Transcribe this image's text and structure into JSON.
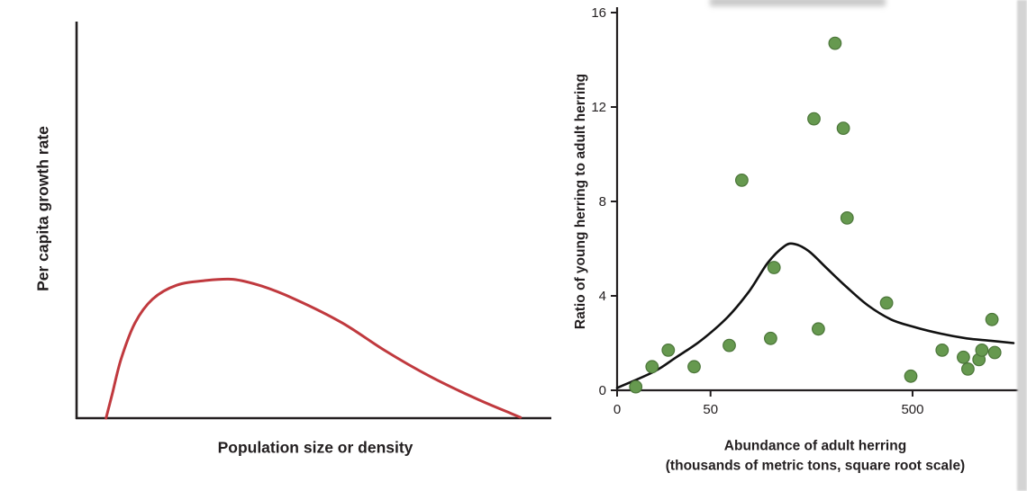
{
  "figure": {
    "background": "#ffffff"
  },
  "chart_data": [
    {
      "type": "line",
      "panel": "left",
      "title": "",
      "xlabel": "Population size or density",
      "ylabel": "Per capita growth rate",
      "xlim": [
        0,
        1
      ],
      "ylim": [
        0,
        1
      ],
      "grid": false,
      "legend": "none",
      "axis_color": "#231f20",
      "line_color": "#c0393e",
      "curve": {
        "x": [
          0.062,
          0.075,
          0.094,
          0.123,
          0.16,
          0.21,
          0.27,
          0.33,
          0.39,
          0.46,
          0.56,
          0.65,
          0.745,
          0.84,
          0.915,
          0.935
        ],
        "y": [
          0,
          0.06,
          0.15,
          0.24,
          0.3,
          0.335,
          0.347,
          0.35,
          0.333,
          0.3,
          0.24,
          0.17,
          0.105,
          0.05,
          0.012,
          0.002
        ]
      }
    },
    {
      "type": "scatter",
      "panel": "right",
      "title": "",
      "xlabel": "Abundance of adult herring",
      "xlabel_line2": "(thousands of metric tons, square root scale)",
      "ylabel": "Ratio of young herring to adult herring",
      "x_scale": "sqrt",
      "xlim": [
        0,
        900
      ],
      "ylim": [
        0,
        16
      ],
      "x_ticks": [
        0,
        50,
        500
      ],
      "y_ticks": [
        0,
        4,
        8,
        12,
        16
      ],
      "grid": false,
      "legend": "none",
      "axis_color": "#231f20",
      "point_color": "#66994f",
      "point_edge_color": "#4c763a",
      "curve_color": "#111111",
      "points": [
        [
          2,
          0.15
        ],
        [
          7,
          1.0
        ],
        [
          15,
          1.7
        ],
        [
          34,
          1.0
        ],
        [
          72,
          1.9
        ],
        [
          89,
          8.9
        ],
        [
          135,
          2.2
        ],
        [
          141,
          5.2
        ],
        [
          222,
          11.5
        ],
        [
          232,
          2.6
        ],
        [
          272,
          14.7
        ],
        [
          293,
          11.1
        ],
        [
          303,
          7.3
        ],
        [
          416,
          3.7
        ],
        [
          494,
          0.6
        ],
        [
          605,
          1.7
        ],
        [
          687,
          1.4
        ],
        [
          705,
          0.9
        ],
        [
          750,
          1.3
        ],
        [
          762,
          1.7
        ],
        [
          805,
          3.0
        ],
        [
          817,
          1.6
        ]
      ],
      "fit_curve": [
        [
          0,
          0.1
        ],
        [
          8,
          0.8
        ],
        [
          20,
          1.4
        ],
        [
          40,
          2.1
        ],
        [
          70,
          3.1
        ],
        [
          100,
          4.2
        ],
        [
          130,
          5.4
        ],
        [
          160,
          6.1
        ],
        [
          180,
          6.2
        ],
        [
          210,
          5.9
        ],
        [
          250,
          5.2
        ],
        [
          300,
          4.4
        ],
        [
          360,
          3.6
        ],
        [
          430,
          3.0
        ],
        [
          500,
          2.7
        ],
        [
          600,
          2.4
        ],
        [
          700,
          2.2
        ],
        [
          800,
          2.1
        ],
        [
          900,
          2.0
        ]
      ]
    }
  ]
}
